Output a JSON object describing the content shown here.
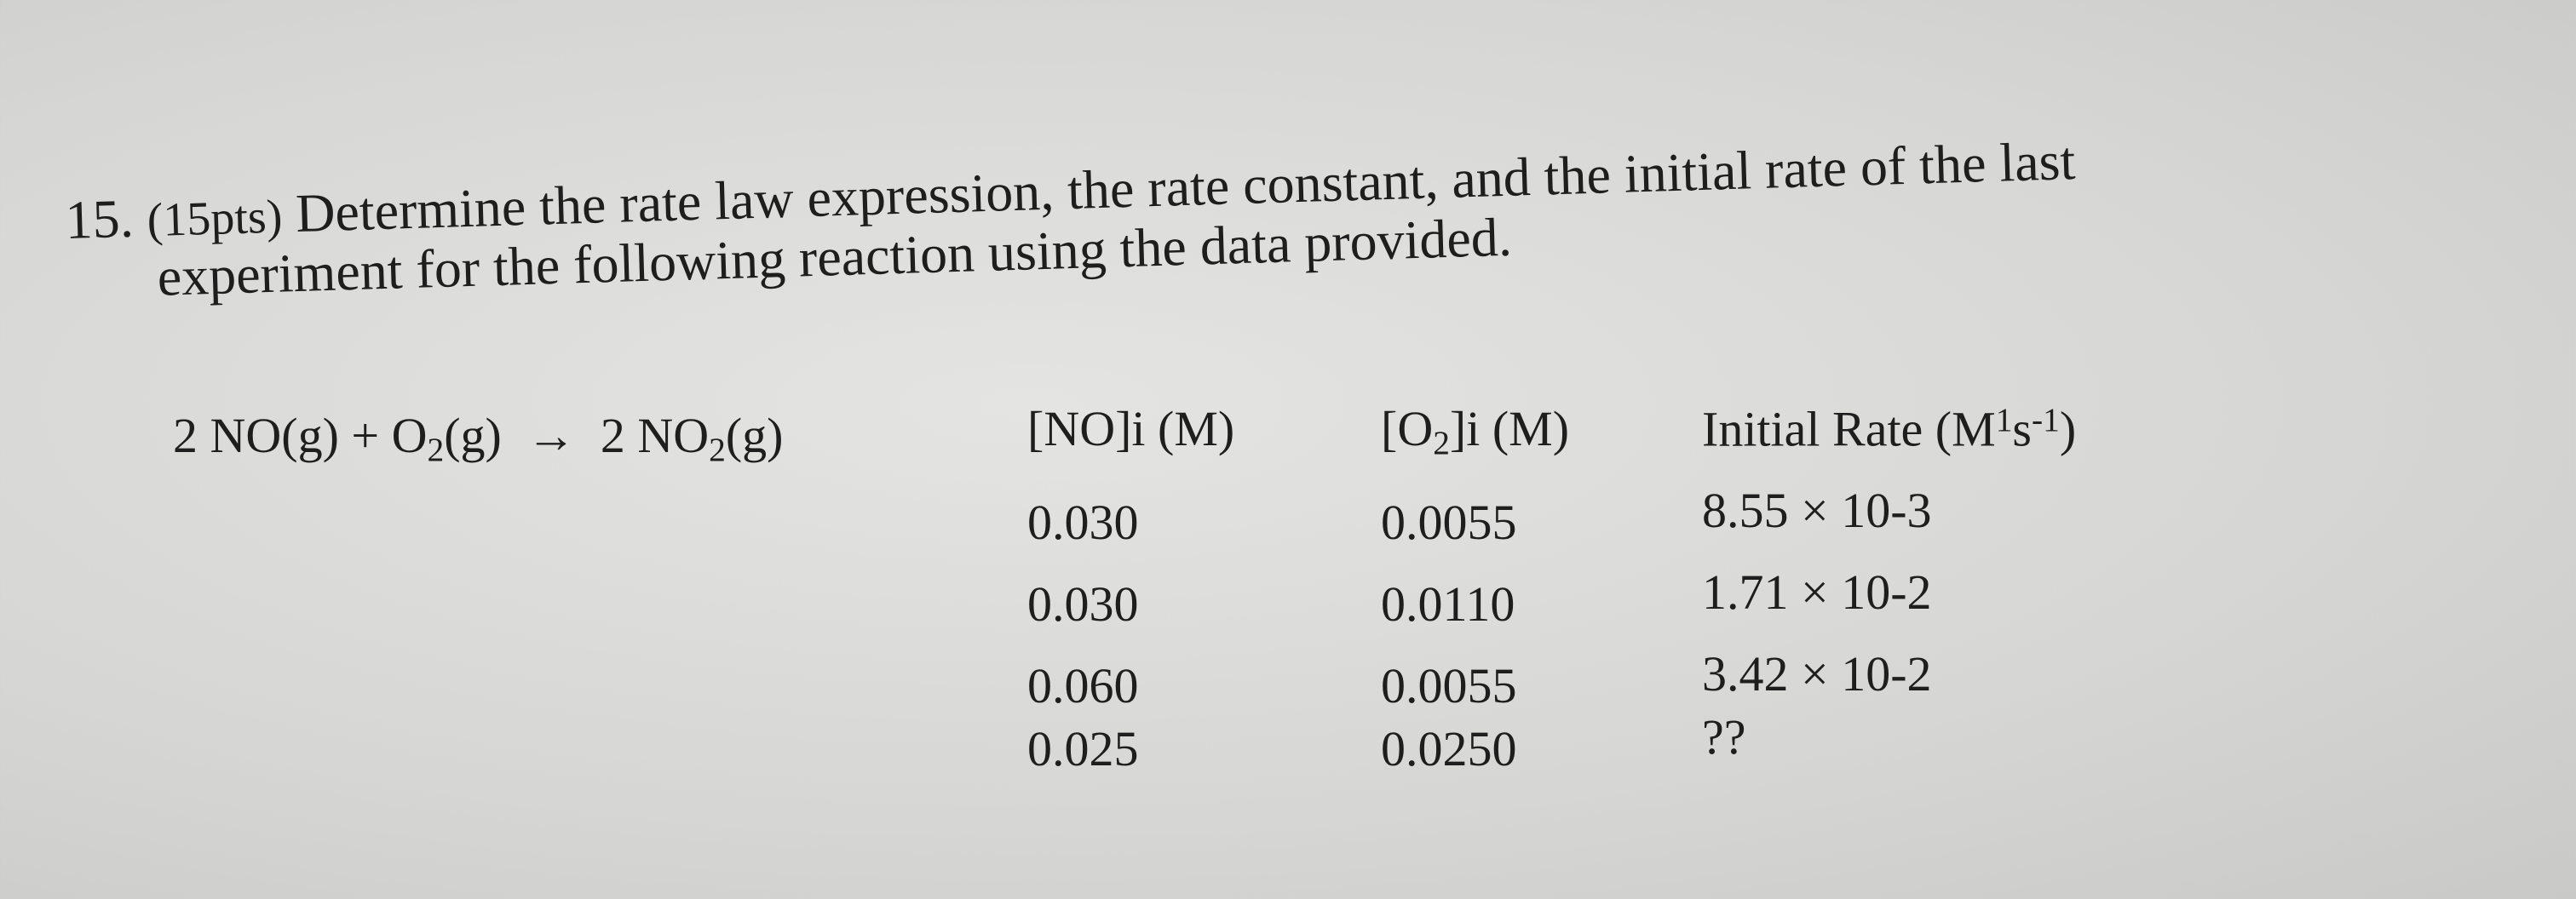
{
  "question": {
    "number": "15.",
    "points": "(15pts)",
    "text_lines": [
      "Determine the rate law expression, the rate constant, and the initial rate of the last",
      "experiment for the following reaction using the data provided."
    ]
  },
  "equation": [
    "2 NO(g) + O",
    "2",
    "(g)  →  2 NO",
    "2",
    "(g)"
  ],
  "table": {
    "headers": [
      [
        "[NO]i (M)"
      ],
      [
        "[O",
        "2",
        "]i (M)"
      ],
      [
        "Initial Rate (M",
        "1",
        "s",
        "-1",
        ")"
      ]
    ],
    "rows": [
      [
        "0.030",
        "0.0055",
        "8.55 × 10-3"
      ],
      [
        "0.030",
        "0.0110",
        "1.71 × 10-2"
      ],
      [
        "0.060",
        "0.0055",
        "3.42 × 10-2"
      ],
      [
        "0.025",
        "0.0250",
        "??"
      ]
    ]
  }
}
